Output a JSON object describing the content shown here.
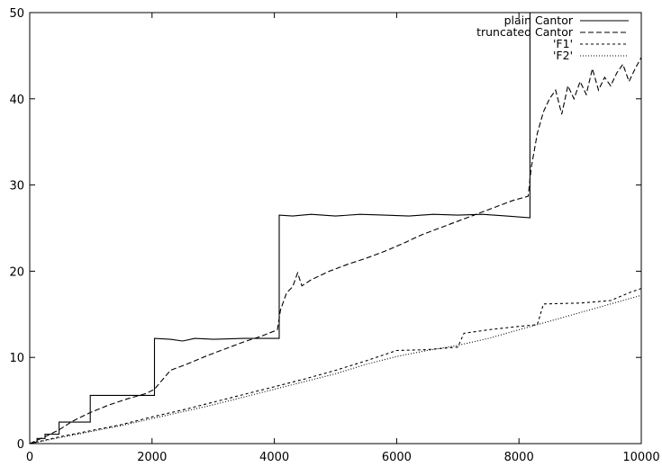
{
  "chart_data": {
    "type": "line",
    "title": "",
    "xlabel": "",
    "ylabel": "",
    "xlim": [
      0,
      10000
    ],
    "ylim": [
      0,
      50
    ],
    "xticks": [
      0,
      2000,
      4000,
      6000,
      8000,
      10000
    ],
    "yticks": [
      0,
      10,
      20,
      30,
      40,
      50
    ],
    "xtick_labels": [
      "0",
      "2000",
      "4000",
      "6000",
      "8000",
      "10000"
    ],
    "ytick_labels": [
      "0",
      "10",
      "20",
      "30",
      "40",
      "50"
    ],
    "grid": false,
    "legend_position": "top-right",
    "series": [
      {
        "name": "plain Cantor",
        "style": "solid",
        "x": [
          0,
          120,
          120,
          250,
          250,
          480,
          480,
          990,
          990,
          2040,
          2040,
          2300,
          2500,
          2700,
          3000,
          3500,
          4080,
          4080,
          4300,
          4600,
          5000,
          5400,
          5800,
          6200,
          6600,
          7000,
          7400,
          7800,
          8180,
          8180
        ],
        "y": [
          0,
          0.2,
          0.6,
          0.6,
          1.1,
          1.1,
          2.5,
          2.5,
          5.6,
          5.6,
          12.2,
          12.1,
          11.9,
          12.2,
          12.1,
          12.2,
          12.2,
          26.5,
          26.4,
          26.6,
          26.4,
          26.6,
          26.5,
          26.4,
          26.6,
          26.5,
          26.6,
          26.4,
          26.2,
          50
        ]
      },
      {
        "name": "truncated Cantor",
        "style": "dashed",
        "x": [
          0,
          250,
          480,
          700,
          990,
          1300,
          1600,
          1900,
          2040,
          2300,
          2600,
          2900,
          3200,
          3500,
          3800,
          4050,
          4100,
          4200,
          4300,
          4380,
          4450,
          4600,
          4900,
          5200,
          5500,
          5800,
          6100,
          6400,
          6700,
          7000,
          7300,
          7600,
          7900,
          8150,
          8200,
          8300,
          8400,
          8500,
          8600,
          8700,
          8800,
          8900,
          9000,
          9100,
          9200,
          9300,
          9400,
          9500,
          9600,
          9700,
          9800,
          9900,
          10000
        ],
        "y": [
          0,
          0.8,
          1.6,
          2.6,
          3.6,
          4.5,
          5.2,
          5.8,
          6.3,
          8.5,
          9.3,
          10.2,
          11,
          11.8,
          12.5,
          13.2,
          15.5,
          17.5,
          18.2,
          19.8,
          18.3,
          19,
          20,
          20.8,
          21.5,
          22.3,
          23.2,
          24.2,
          25,
          25.8,
          26.6,
          27.4,
          28.2,
          28.7,
          32,
          36,
          38.5,
          40,
          41,
          38.2,
          41.5,
          40,
          42,
          40.5,
          43.5,
          41,
          42.5,
          41.5,
          43,
          44,
          42,
          43.5,
          44.8
        ]
      },
      {
        "name": "'F1'",
        "style": "short-dashed",
        "x": [
          0,
          500,
          1000,
          1500,
          2000,
          2500,
          3000,
          3500,
          4000,
          4500,
          5000,
          5500,
          6000,
          6500,
          7000,
          7100,
          7500,
          8000,
          8300,
          8400,
          9000,
          9500,
          9800,
          10000
        ],
        "y": [
          0,
          0.8,
          1.5,
          2.2,
          3.1,
          3.9,
          4.8,
          5.7,
          6.6,
          7.5,
          8.5,
          9.6,
          10.8,
          10.9,
          11.2,
          12.8,
          13.2,
          13.6,
          13.8,
          16.2,
          16.3,
          16.6,
          17.5,
          18
        ]
      },
      {
        "name": "'F2'",
        "style": "dotted",
        "x": [
          0,
          500,
          1000,
          1500,
          2000,
          2500,
          3000,
          3500,
          4000,
          4500,
          5000,
          5500,
          6000,
          6500,
          7000,
          7500,
          8000,
          8500,
          9000,
          9500,
          10000
        ],
        "y": [
          0,
          0.7,
          1.4,
          2.1,
          2.9,
          3.7,
          4.5,
          5.4,
          6.3,
          7.2,
          8.1,
          9.2,
          10.1,
          10.8,
          11.4,
          12.2,
          13.2,
          14.2,
          15.2,
          16.2,
          17.2
        ]
      }
    ]
  }
}
